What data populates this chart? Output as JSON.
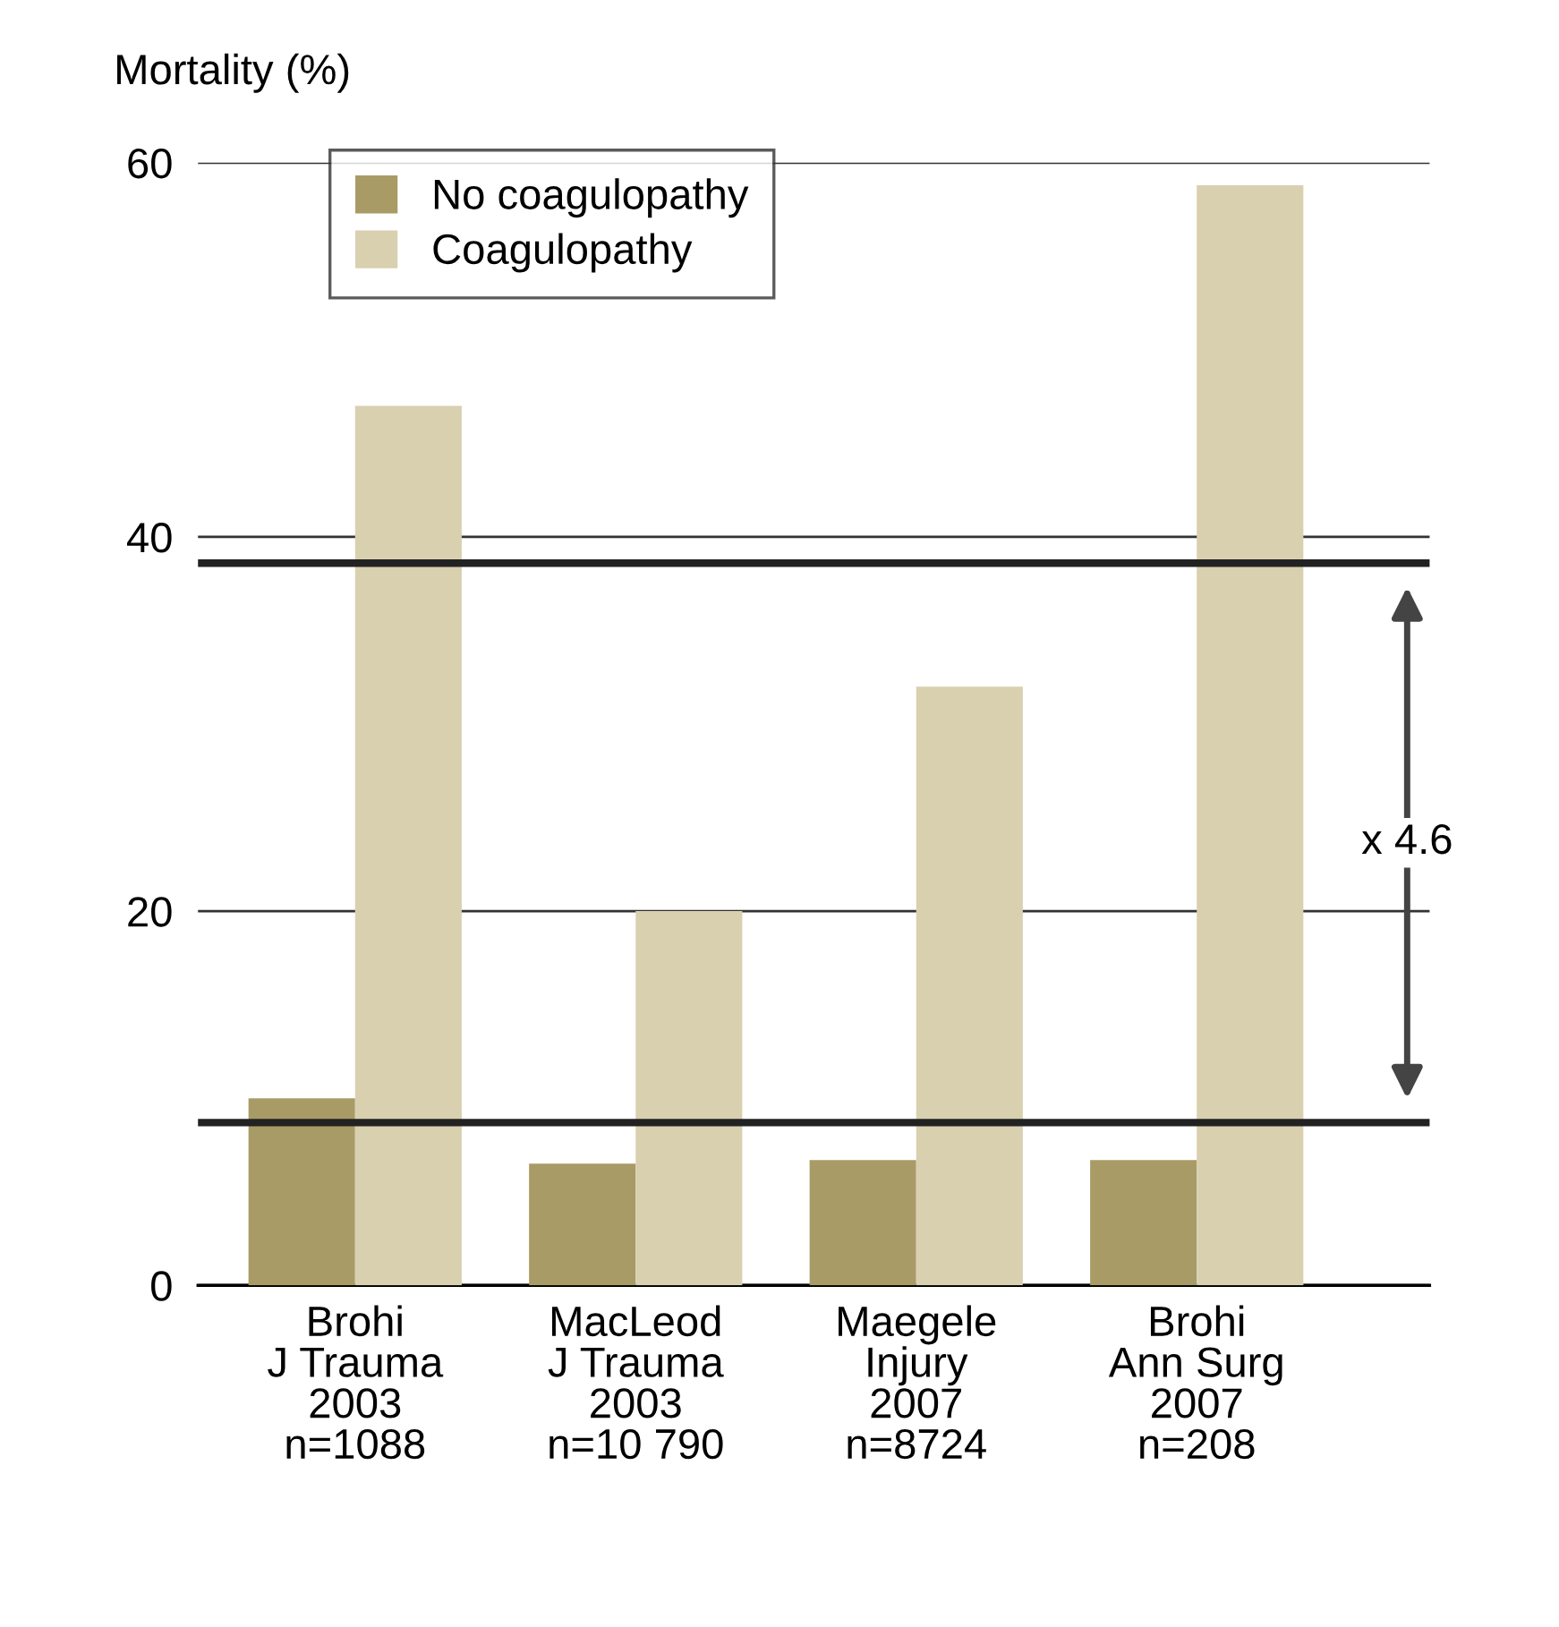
{
  "chart_data": {
    "type": "bar",
    "ylabel": "Mortality (%)",
    "categories": [
      "Brohi\nJ Trauma\n2003\nn=1088",
      "MacLeod\nJ Trauma\n2003\nn=10 790",
      "Maegele\nInjury\n2007\nn=8724",
      "Brohi\nAnn Surg\n2007\nn=208"
    ],
    "series": [
      {
        "name": "No coagulopathy",
        "color": "#a99b66",
        "values": [
          10,
          6.5,
          6.7,
          6.7
        ]
      },
      {
        "name": "Coagulopathy",
        "color": "#d9d0b0",
        "values": [
          47,
          20,
          32,
          58.8
        ]
      }
    ],
    "ylim": [
      0,
      60
    ],
    "yticks": [
      0,
      20,
      40,
      60
    ],
    "grid": "y",
    "legend": "top left",
    "ref_lines": [
      {
        "axis": "y",
        "value": 38.6,
        "color": "#222222"
      },
      {
        "axis": "y",
        "value": 8.7,
        "color": "#222222"
      }
    ],
    "annotations": [
      "x 4.6"
    ]
  }
}
